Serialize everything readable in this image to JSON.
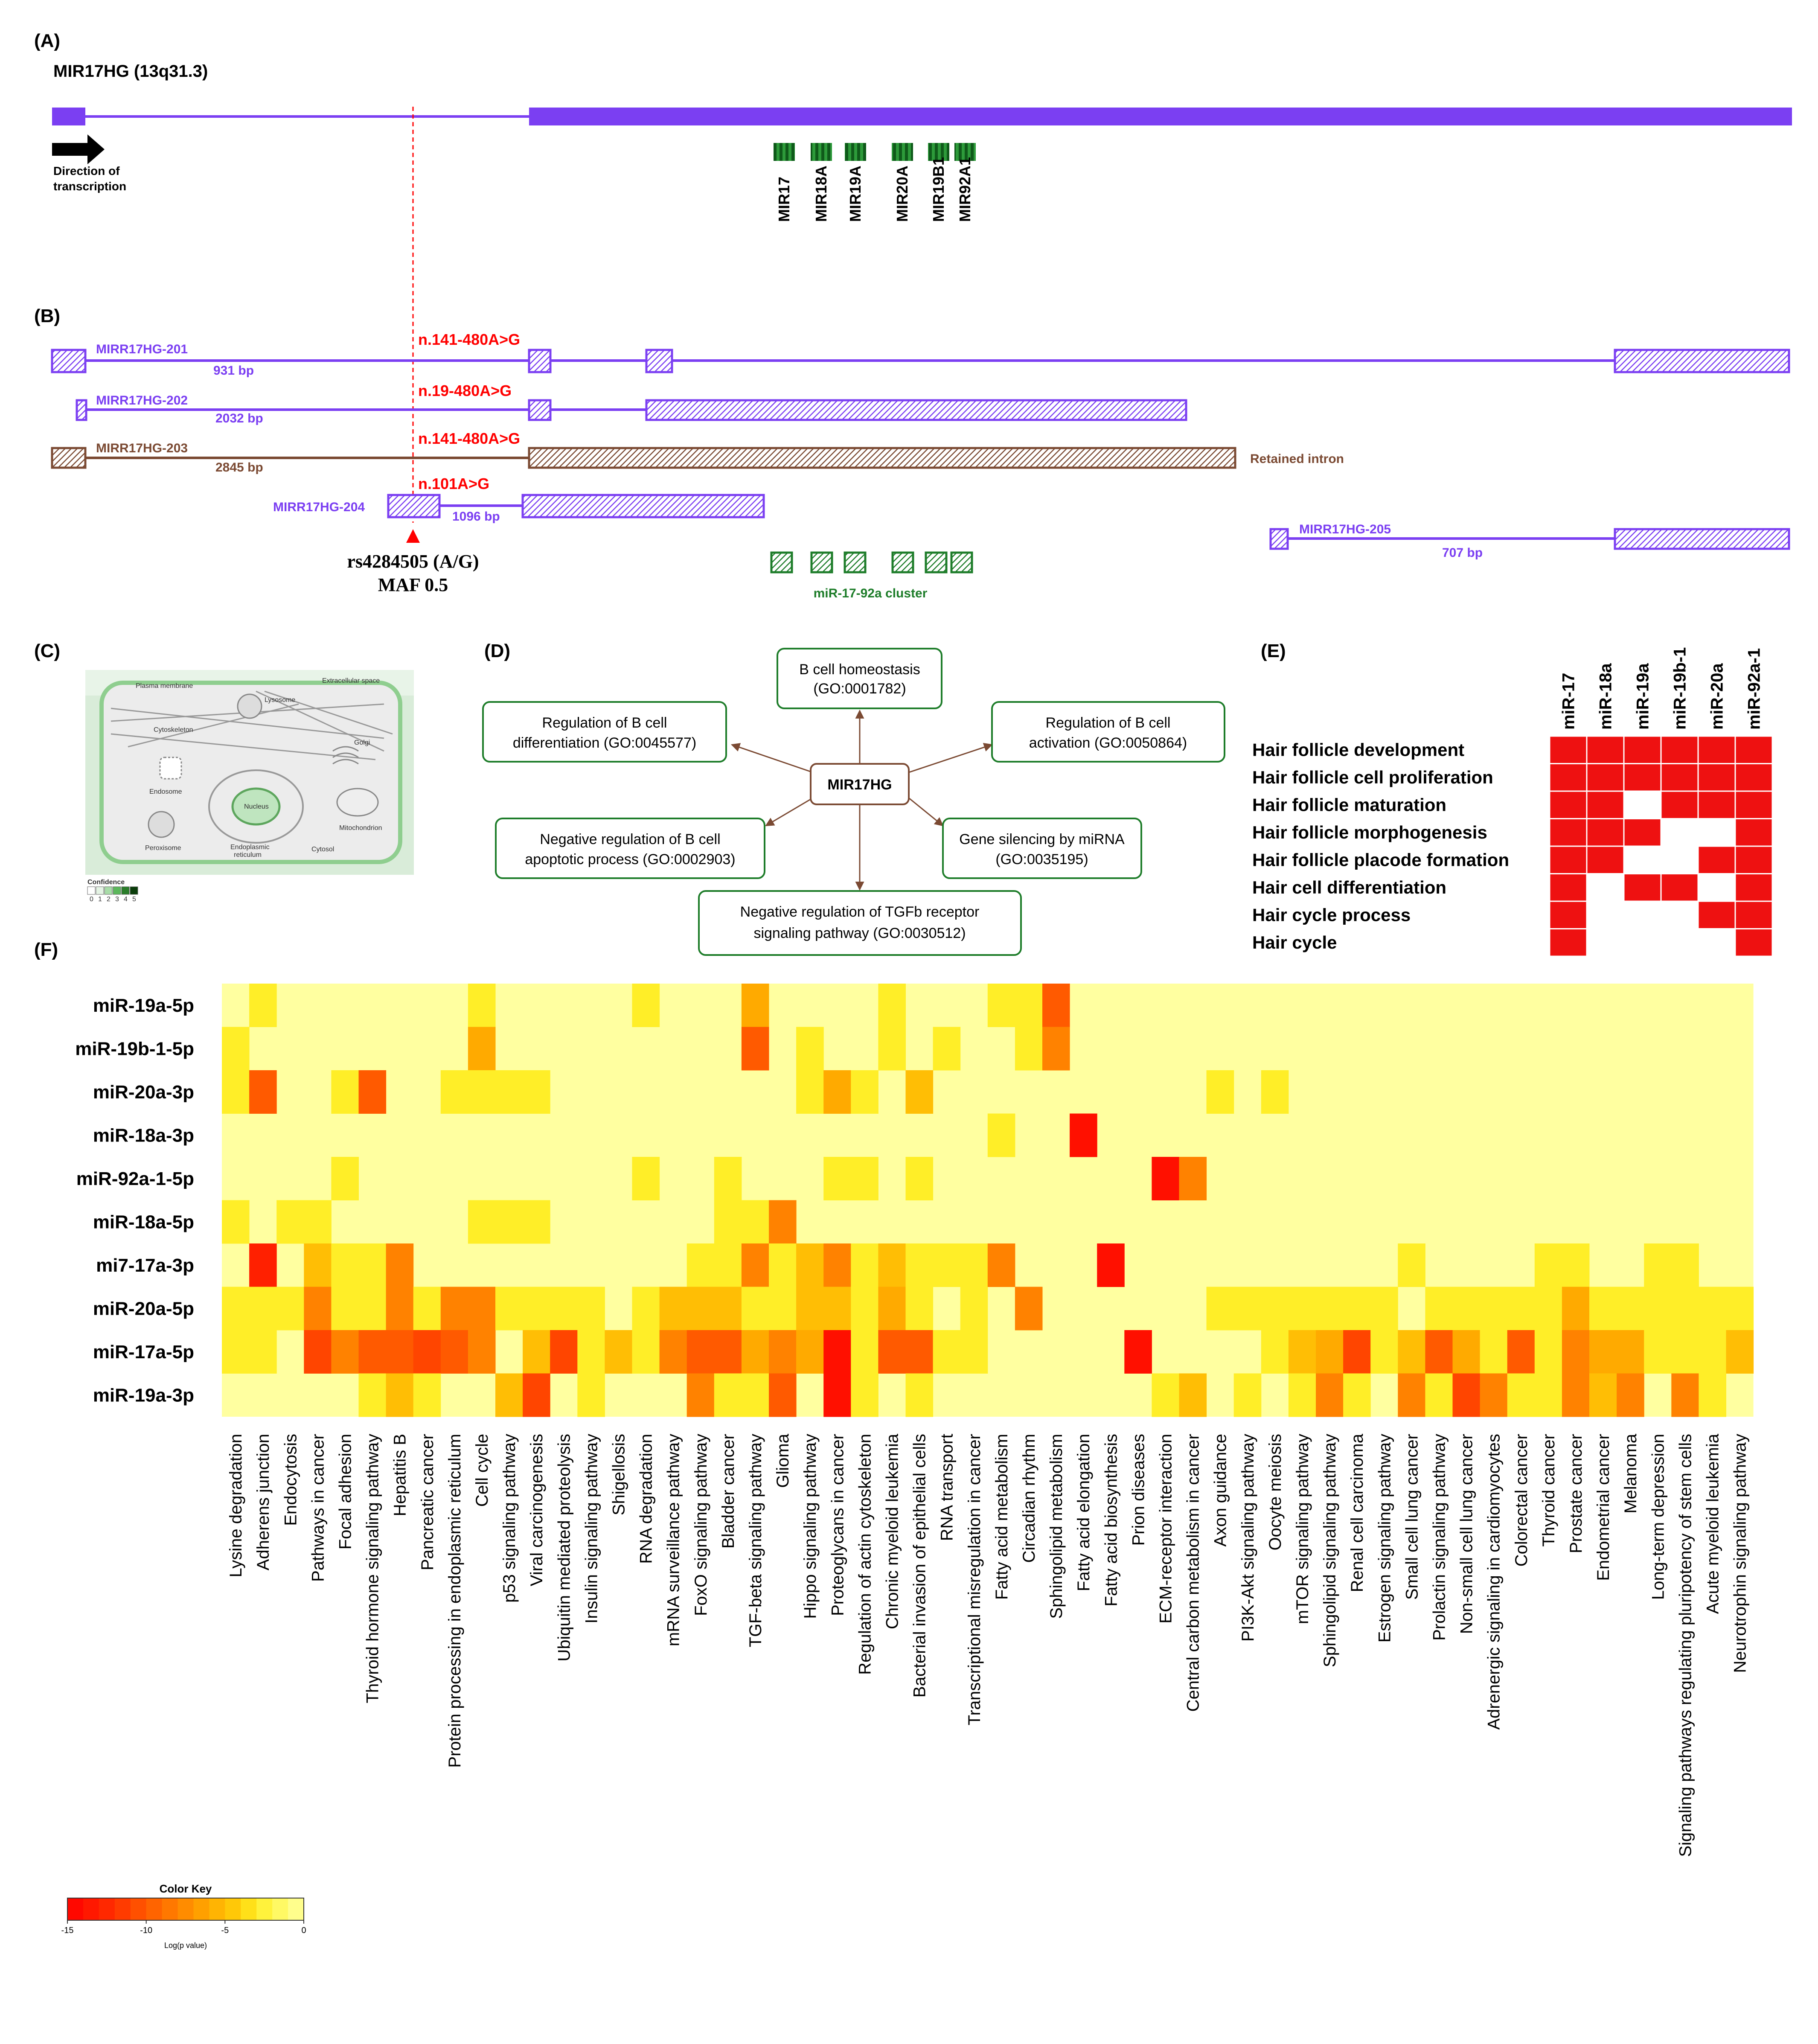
{
  "colors": {
    "purple": "#7b3ff2",
    "brown": "#7b4a33",
    "green": "#1e7d2a",
    "red": "#ff0000",
    "heat_high": "#ff0000",
    "heat_low": "#ffff99"
  },
  "panel_a": {
    "letter": "(A)",
    "gene_title": "MIR17HG (13q31.3)",
    "direction_label_1": "Direction of",
    "direction_label_2": "transcription",
    "mirnas": [
      "MIR17",
      "MIR18A",
      "MIR19A",
      "MIR20A",
      "MIR19B1",
      "MIR92A1"
    ]
  },
  "panel_b": {
    "letter": "(B)",
    "transcripts": [
      {
        "name": "MIRR17HG-201",
        "bp": "931 bp",
        "variant": "n.141-480A>G"
      },
      {
        "name": "MIRR17HG-202",
        "bp": "2032 bp",
        "variant": "n.19-480A>G"
      },
      {
        "name": "MIRR17HG-203",
        "bp": "2845 bp",
        "variant": "n.141-480A>G",
        "note": "Retained intron"
      },
      {
        "name": "MIRR17HG-204",
        "bp": "1096 bp",
        "variant": "n.101A>G"
      },
      {
        "name": "MIRR17HG-205",
        "bp": "707 bp"
      }
    ],
    "snp": "rs4284505 (A/G)",
    "maf": "MAF 0.5",
    "cluster": "miR-17-92a cluster"
  },
  "panel_c": {
    "letter": "(C)",
    "labels": {
      "plasma_membrane": "Plasma membrane",
      "extracellular": "Extracellular space",
      "lysosome": "Lysosome",
      "cytoskeleton": "Cytoskeleton",
      "golgi": "Golgi",
      "endosome": "Endosome",
      "nucleus": "Nucleus",
      "mitochondrion": "Mitochondrion",
      "peroxisome": "Peroxisome",
      "er": "Endoplasmic",
      "er2": "reticulum",
      "cytosol": "Cytosol",
      "confidence": "Confidence",
      "conf_scale": [
        "0",
        "1",
        "2",
        "3",
        "4",
        "5"
      ]
    }
  },
  "panel_d": {
    "letter": "(D)",
    "center": "MIR17HG",
    "terms": [
      {
        "l1": "B cell homeostasis",
        "l2": "(GO:0001782)"
      },
      {
        "l1": "Regulation of B cell",
        "l2": "differentiation (GO:0045577)"
      },
      {
        "l1": "Regulation of B cell",
        "l2": "activation (GO:0050864)"
      },
      {
        "l1": "Negative regulation of B cell",
        "l2": "apoptotic process (GO:0002903)"
      },
      {
        "l1": "Gene silencing by miRNA",
        "l2": "(GO:0035195)"
      },
      {
        "l1": "Negative regulation of TGFb receptor",
        "l2": "signaling pathway (GO:0030512)"
      }
    ]
  },
  "panel_e": {
    "letter": "(E)",
    "columns": [
      "miR-17",
      "miR-18a",
      "miR-19a",
      "miR-19b-1",
      "miR-20a",
      "miR-92a-1"
    ],
    "rows": [
      "Hair follicle development",
      "Hair follicle cell proliferation",
      "Hair follicle maturation",
      "Hair follicle morphogenesis",
      "Hair follicle placode formation",
      "Hair cell differentiation",
      "Hair cycle process",
      "Hair cycle"
    ],
    "matrix": [
      [
        1,
        1,
        1,
        1,
        1,
        1
      ],
      [
        1,
        1,
        1,
        1,
        1,
        1
      ],
      [
        1,
        1,
        0,
        1,
        1,
        1
      ],
      [
        1,
        1,
        1,
        0,
        0,
        1
      ],
      [
        1,
        1,
        0,
        0,
        1,
        1
      ],
      [
        1,
        0,
        1,
        1,
        0,
        1
      ],
      [
        1,
        0,
        0,
        0,
        1,
        1
      ],
      [
        1,
        0,
        0,
        0,
        0,
        1
      ]
    ]
  },
  "chart_data": {
    "type": "heatmap",
    "title": "",
    "panel_letter": "(F)",
    "rows": [
      "miR-19a-5p",
      "miR-19b-1-5p",
      "miR-20a-3p",
      "miR-18a-3p",
      "miR-92a-1-5p",
      "miR-18a-5p",
      "mi7-17a-3p",
      "miR-20a-5p",
      "miR-17a-5p",
      "miR-19a-3p"
    ],
    "columns": [
      "Lysine degradation",
      "Adherens junction",
      "Endocytosis",
      "Pathways in cancer",
      "Focal adhesion",
      "Thyroid hormone signaling pathway",
      "Hepatitis B",
      "Pancreatic cancer",
      "Protein processing in endoplasmic reticulum",
      "Cell cycle",
      "p53 signaling pathway",
      "Viral carcinogenesis",
      "Ubiquitin mediated proteolysis",
      "Insulin signaling pathway",
      "Shigellosis",
      "RNA degradation",
      "mRNA surveillance pathway",
      "FoxO signaling pathway",
      "Bladder cancer",
      "TGF-beta signaling pathway",
      "Glioma",
      "Hippo signaling pathway",
      "Proteoglycans in cancer",
      "Regulation of actin cytoskeleton",
      "Chronic myeloid leukemia",
      "Bacterial invasion of epithelial cells",
      "RNA transport",
      "Transcriptional misregulation in cancer",
      "Fatty acid metabolism",
      "Circadian rhythm",
      "Sphingolipid metabolism",
      "Fatty acid elongation",
      "Fatty acid biosynthesis",
      "Prion diseases",
      "ECM-receptor interaction",
      "Central carbon metabolism in cancer",
      "Axon guidance",
      "PI3K-Akt signaling pathway",
      "Oocyte meiosis",
      "mTOR signaling pathway",
      "Sphingolipid signaling pathway",
      "Renal cell carcinoma",
      "Estrogen signaling pathway",
      "Small cell lung cancer",
      "Prolactin signaling pathway",
      "Non-small cell lung cancer",
      "Adrenergic signaling in cardiomyocytes",
      "Colorectal cancer",
      "Thyroid cancer",
      "Prostate cancer",
      "Endometrial cancer",
      "Melanoma",
      "Long-term depression",
      "Signaling pathways regulating pluripotency of stem cells",
      "Acute myeloid leukemia",
      "Neurotrophin signaling pathway"
    ],
    "values": [
      [
        0,
        -3,
        0,
        0,
        0,
        0,
        0,
        0,
        0,
        -3,
        0,
        0,
        0,
        0,
        0,
        -3,
        0,
        0,
        0,
        -6,
        0,
        0,
        0,
        0,
        -3,
        0,
        0,
        0,
        -3,
        -3,
        -10,
        0,
        0,
        0,
        0,
        0,
        0,
        0,
        0,
        0,
        0,
        0,
        0,
        0,
        0,
        0,
        0,
        0,
        0,
        0,
        0,
        0,
        0,
        0,
        0,
        0
      ],
      [
        -3,
        0,
        0,
        0,
        0,
        0,
        0,
        0,
        0,
        -6,
        0,
        0,
        0,
        0,
        0,
        0,
        0,
        0,
        0,
        -10,
        0,
        -3,
        0,
        0,
        -3,
        0,
        -3,
        0,
        0,
        -3,
        -8,
        0,
        0,
        0,
        0,
        0,
        0,
        0,
        0,
        0,
        0,
        0,
        0,
        0,
        0,
        0,
        0,
        0,
        0,
        0,
        0,
        0,
        0,
        0,
        0,
        0
      ],
      [
        -3,
        -10,
        0,
        0,
        -3,
        -10,
        0,
        0,
        -3,
        -3,
        -3,
        -3,
        0,
        0,
        0,
        0,
        0,
        0,
        0,
        0,
        0,
        -3,
        -6,
        -3,
        0,
        -5,
        0,
        0,
        0,
        0,
        0,
        0,
        0,
        0,
        0,
        0,
        -3,
        0,
        -3,
        0,
        0,
        0,
        0,
        0,
        0,
        0,
        0,
        0,
        0,
        0,
        0,
        0,
        0,
        0,
        0,
        0
      ],
      [
        0,
        0,
        0,
        0,
        0,
        0,
        0,
        0,
        0,
        0,
        0,
        0,
        0,
        0,
        0,
        0,
        0,
        0,
        0,
        0,
        0,
        0,
        0,
        0,
        0,
        0,
        0,
        0,
        -3,
        0,
        0,
        -14,
        0,
        0,
        0,
        0,
        0,
        0,
        0,
        0,
        0,
        0,
        0,
        0,
        0,
        0,
        0,
        0,
        0,
        0,
        0,
        0,
        0,
        0,
        0,
        0
      ],
      [
        0,
        0,
        0,
        0,
        -3,
        0,
        0,
        0,
        0,
        0,
        0,
        0,
        0,
        0,
        0,
        -3,
        0,
        0,
        -3,
        0,
        0,
        0,
        -3,
        -3,
        0,
        -3,
        0,
        0,
        0,
        0,
        0,
        0,
        0,
        0,
        -14,
        -8,
        0,
        0,
        0,
        0,
        0,
        0,
        0,
        0,
        0,
        0,
        0,
        0,
        0,
        0,
        0,
        0,
        0,
        0,
        0,
        0
      ],
      [
        -3,
        0,
        -3,
        -3,
        0,
        0,
        0,
        0,
        0,
        -3,
        -3,
        -3,
        0,
        0,
        0,
        0,
        0,
        0,
        -3,
        -3,
        -8,
        0,
        0,
        0,
        0,
        0,
        0,
        0,
        0,
        0,
        0,
        0,
        0,
        0,
        0,
        0,
        0,
        0,
        0,
        0,
        0,
        0,
        0,
        0,
        0,
        0,
        0,
        0,
        0,
        0,
        0,
        0,
        0,
        0,
        0,
        0
      ],
      [
        0,
        -13,
        0,
        -5,
        -3,
        -3,
        -8,
        0,
        0,
        0,
        0,
        0,
        0,
        0,
        0,
        0,
        0,
        -3,
        -3,
        -8,
        -3,
        -5,
        -8,
        -3,
        -5,
        -3,
        -3,
        -3,
        -8,
        0,
        0,
        0,
        -14,
        0,
        0,
        0,
        0,
        0,
        0,
        0,
        0,
        0,
        0,
        -3,
        0,
        0,
        0,
        0,
        -3,
        -3,
        0,
        0,
        -3,
        -3,
        0,
        0
      ],
      [
        -3,
        -3,
        -3,
        -8,
        -3,
        -3,
        -8,
        -3,
        -8,
        -8,
        -3,
        -3,
        -3,
        -3,
        0,
        -3,
        -5,
        -5,
        -5,
        -3,
        -3,
        -5,
        -5,
        -3,
        -6,
        -3,
        0,
        -3,
        0,
        -8,
        0,
        0,
        0,
        0,
        0,
        0,
        -3,
        -3,
        -3,
        -3,
        -3,
        -3,
        -3,
        0,
        -3,
        -3,
        -3,
        -3,
        -3,
        -6,
        -3,
        -3,
        -3,
        -3,
        -3,
        -3
      ],
      [
        -3,
        -3,
        0,
        -11,
        -8,
        -10,
        -10,
        -11,
        -10,
        -8,
        0,
        -5,
        -11,
        -3,
        -5,
        -3,
        -8,
        -10,
        -10,
        -6,
        -8,
        -6,
        -14,
        -3,
        -10,
        -10,
        -3,
        -3,
        0,
        0,
        0,
        0,
        0,
        -14,
        0,
        0,
        0,
        0,
        -3,
        -5,
        -6,
        -11,
        -3,
        -5,
        -10,
        -6,
        -3,
        -10,
        -3,
        -8,
        -6,
        -6,
        -3,
        -3,
        -3,
        -5
      ],
      [
        0,
        0,
        0,
        0,
        0,
        -3,
        -5,
        -3,
        0,
        0,
        -5,
        -11,
        0,
        -3,
        0,
        0,
        0,
        -8,
        -3,
        -3,
        -10,
        0,
        -14,
        -3,
        0,
        -3,
        0,
        0,
        0,
        0,
        0,
        0,
        0,
        0,
        -3,
        -5,
        0,
        -3,
        0,
        -3,
        -8,
        -3,
        0,
        -8,
        -3,
        -11,
        -8,
        -3,
        -3,
        -8,
        -5,
        -8,
        0,
        -8,
        -3,
        0
      ]
    ],
    "colorbar": {
      "title": "Color Key",
      "xlabel": "Log(p value)",
      "ticks": [
        "-15",
        "-10",
        "-5",
        "0"
      ],
      "range": [
        -15,
        0
      ]
    }
  }
}
